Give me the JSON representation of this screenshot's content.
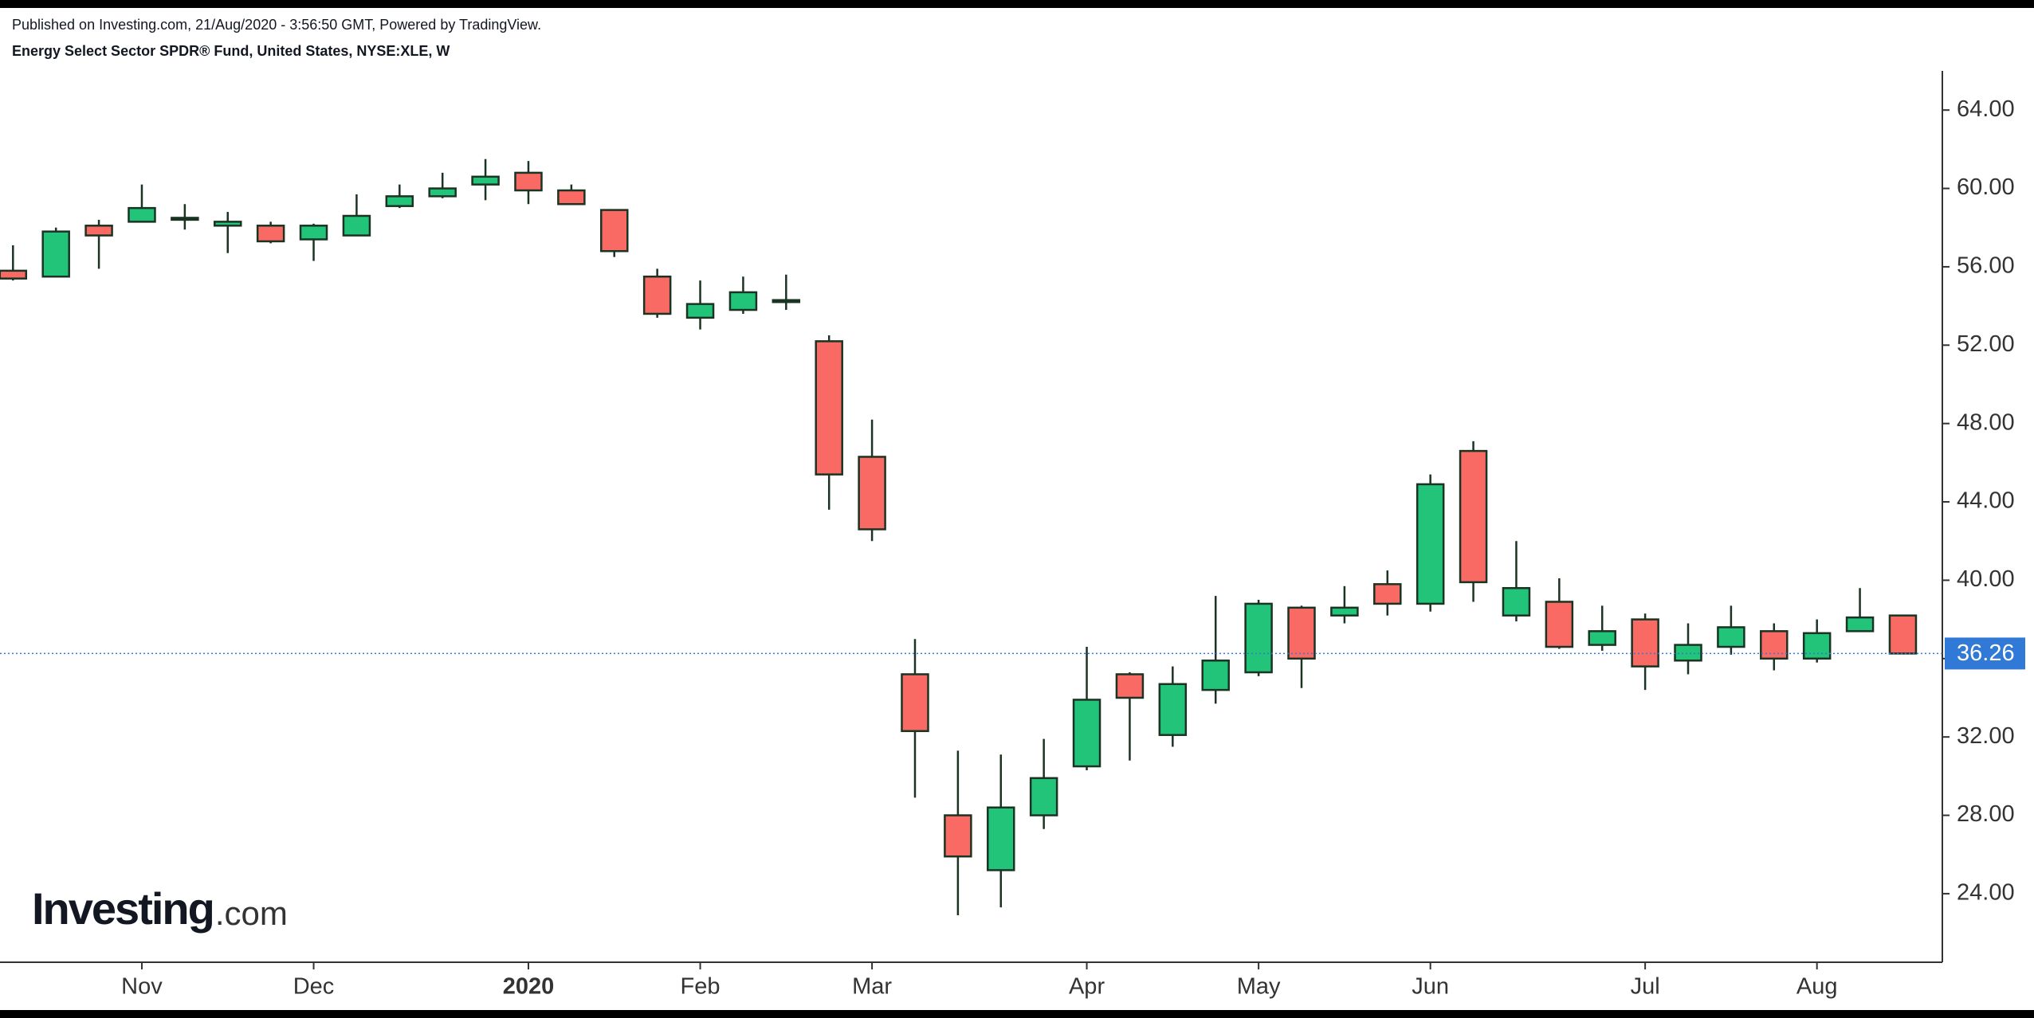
{
  "chart_data": {
    "type": "candlestick",
    "subtitle": "Published on Investing.com, 21/Aug/2020 - 3:56:50 GMT, Powered by TradingView.",
    "title": "Energy Select Sector SPDR® Fund, United States, NYSE:XLE, W",
    "logo": {
      "name": "Investing",
      "suffix": ".com"
    },
    "categories": [
      null,
      null,
      null,
      "Nov",
      null,
      null,
      null,
      "Dec",
      null,
      null,
      null,
      null,
      "2020",
      null,
      null,
      null,
      "Feb",
      null,
      null,
      null,
      "Mar",
      null,
      null,
      null,
      null,
      "Apr",
      null,
      null,
      null,
      "May",
      null,
      null,
      null,
      "Jun",
      null,
      null,
      null,
      null,
      "Jul",
      null,
      null,
      null,
      "Aug",
      null,
      null
    ],
    "open": [
      55.8,
      55.5,
      58.1,
      58.3,
      58.5,
      58.1,
      58.1,
      57.4,
      57.6,
      59.1,
      59.6,
      60.2,
      60.8,
      59.9,
      58.9,
      55.5,
      53.4,
      53.8,
      54.2,
      52.2,
      46.3,
      35.2,
      28.0,
      25.2,
      28.0,
      30.5,
      35.2,
      32.1,
      34.4,
      35.3,
      38.6,
      38.2,
      39.8,
      38.8,
      46.6,
      38.2,
      38.9,
      36.7,
      38.0,
      35.9,
      36.6,
      37.4,
      36.0,
      37.4,
      38.2
    ],
    "high": [
      57.1,
      58.0,
      58.4,
      60.2,
      59.2,
      58.8,
      58.3,
      58.2,
      59.7,
      60.2,
      60.8,
      61.5,
      61.4,
      60.2,
      58.9,
      55.9,
      55.3,
      55.5,
      55.6,
      52.5,
      48.2,
      37.0,
      31.3,
      31.1,
      31.9,
      36.6,
      35.3,
      35.6,
      39.2,
      39.0,
      38.7,
      39.7,
      40.5,
      45.4,
      47.1,
      42.0,
      40.1,
      38.7,
      38.3,
      37.8,
      38.7,
      37.8,
      38.0,
      39.6,
      38.2
    ],
    "low": [
      55.3,
      55.5,
      55.9,
      58.3,
      57.9,
      56.7,
      57.2,
      56.3,
      57.6,
      59.0,
      59.5,
      59.4,
      59.2,
      59.2,
      56.5,
      53.4,
      52.8,
      53.6,
      53.8,
      43.6,
      42.0,
      28.9,
      22.9,
      23.3,
      27.3,
      30.3,
      30.8,
      31.5,
      33.7,
      35.1,
      34.5,
      37.8,
      38.2,
      38.4,
      38.9,
      37.9,
      36.5,
      36.4,
      34.4,
      35.2,
      36.2,
      35.4,
      35.8,
      37.4,
      36.26
    ],
    "close": [
      55.4,
      57.8,
      57.6,
      59.0,
      58.4,
      58.3,
      57.3,
      58.1,
      58.6,
      59.6,
      60.0,
      60.6,
      59.9,
      59.2,
      56.8,
      53.6,
      54.1,
      54.7,
      54.3,
      45.4,
      42.6,
      32.3,
      25.9,
      28.4,
      29.9,
      33.9,
      34.0,
      34.7,
      35.9,
      38.8,
      36.0,
      38.6,
      38.8,
      44.9,
      39.9,
      39.6,
      36.6,
      37.4,
      35.6,
      36.7,
      37.6,
      36.0,
      37.3,
      38.1,
      36.26
    ],
    "up_color": "#22c47a",
    "down_color": "#f96a64",
    "outline_color": "#1b3322",
    "last_price_color": "#3179d6",
    "ylim": [
      20.5,
      66
    ],
    "yticks": [
      {
        "value": 24,
        "label": "24.00"
      },
      {
        "value": 28,
        "label": "28.00"
      },
      {
        "value": 32,
        "label": "32.00"
      },
      {
        "value": 36,
        "label": "36.00"
      },
      {
        "value": 40,
        "label": "40.00"
      },
      {
        "value": 44,
        "label": "44.00"
      },
      {
        "value": 48,
        "label": "48.00"
      },
      {
        "value": 52,
        "label": "52.00"
      },
      {
        "value": 56,
        "label": "56.00"
      },
      {
        "value": 60,
        "label": "60.00"
      },
      {
        "value": 64,
        "label": "64.00"
      }
    ],
    "bold_categories": [
      "2020"
    ]
  }
}
